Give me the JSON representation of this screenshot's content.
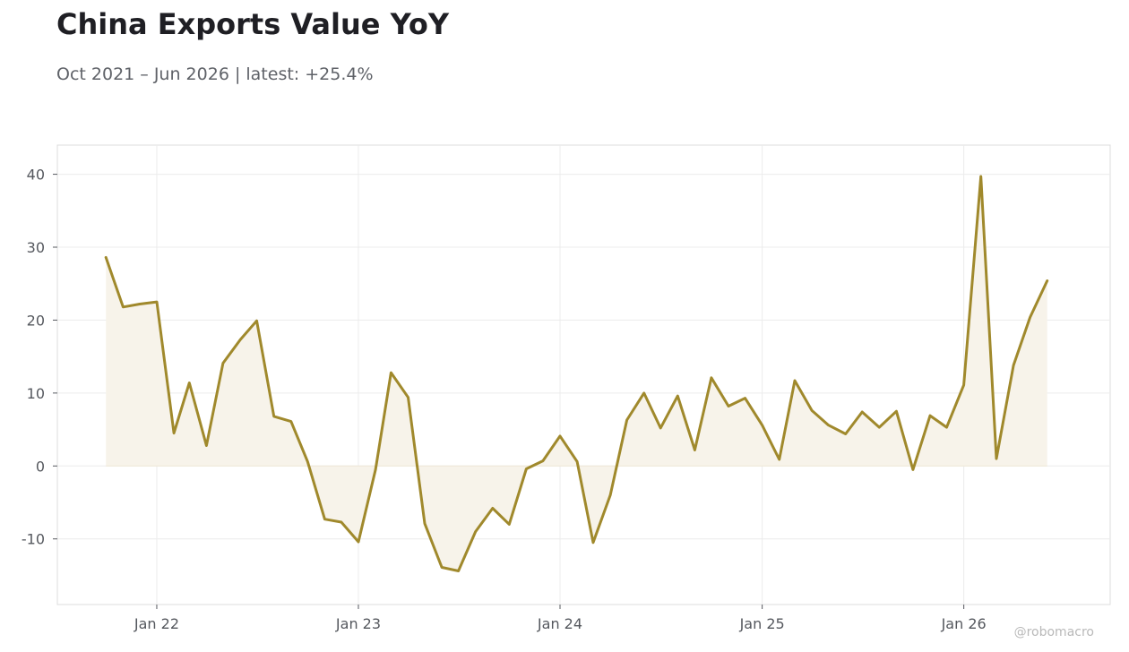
{
  "header": {
    "title": "China Exports Value YoY",
    "subtitle": "Oct 2021 – Jun 2026 | latest: +25.4%"
  },
  "watermark": "@robomacro",
  "colors": {
    "line": "#a0892c",
    "fill": "#f7f3ea",
    "grid": "#ececec",
    "frame": "#dcdcdc"
  },
  "chart_data": {
    "type": "area",
    "title": "China Exports Value YoY",
    "subtitle": "Oct 2021 – Jun 2026 | latest: +25.4%",
    "xlabel": "",
    "ylabel": "",
    "ylim": [
      -19,
      44
    ],
    "xlim": [
      "2021-07-05",
      "2026-09-23"
    ],
    "grid": true,
    "legend": "none",
    "yticks": [
      -10,
      0,
      10,
      20,
      30,
      40
    ],
    "ytick_labels": [
      "-10",
      "0",
      "10",
      "20",
      "30",
      "40"
    ],
    "xticks": [
      "2022-01-01",
      "2023-01-01",
      "2024-01-01",
      "2025-01-01",
      "2026-01-01"
    ],
    "xtick_labels": [
      "Jan 22",
      "Jan 23",
      "Jan 24",
      "Jan 25",
      "Jan 26"
    ],
    "series": [
      {
        "x": [
          "2021-10-01",
          "2021-11-01",
          "2021-12-01",
          "2022-01-01",
          "2022-02-01",
          "2022-03-01",
          "2022-04-01",
          "2022-05-01",
          "2022-06-01",
          "2022-07-01",
          "2022-08-01",
          "2022-09-01",
          "2022-10-01",
          "2022-11-01",
          "2022-12-01",
          "2023-01-01",
          "2023-02-01",
          "2023-03-01",
          "2023-04-01",
          "2023-05-01",
          "2023-06-01",
          "2023-07-01",
          "2023-08-01",
          "2023-09-01",
          "2023-10-01",
          "2023-11-01",
          "2023-12-01",
          "2024-01-01",
          "2024-02-01",
          "2024-03-01",
          "2024-04-01",
          "2024-05-01",
          "2024-06-01",
          "2024-07-01",
          "2024-08-01",
          "2024-09-01",
          "2024-10-01",
          "2024-11-01",
          "2024-12-01",
          "2025-01-01",
          "2025-02-01",
          "2025-03-01",
          "2025-04-01",
          "2025-05-01",
          "2025-06-01",
          "2025-07-01",
          "2025-08-01",
          "2025-09-01",
          "2025-10-01",
          "2025-11-01",
          "2025-12-01",
          "2026-01-01",
          "2026-02-01",
          "2026-03-01",
          "2026-04-01",
          "2026-05-01",
          "2026-06-01"
        ],
        "values": [
          28.6,
          21.8,
          22.2,
          22.5,
          4.5,
          11.4,
          2.8,
          14.1,
          17.3,
          19.9,
          6.8,
          6.1,
          0.6,
          -7.3,
          -7.7,
          -10.4,
          -0.5,
          12.8,
          9.4,
          -7.9,
          -13.9,
          -14.4,
          -9.0,
          -5.8,
          -8.0,
          -0.4,
          0.7,
          4.1,
          0.6,
          -10.5,
          -4.0,
          6.3,
          10.0,
          5.2,
          9.6,
          2.2,
          12.1,
          8.2,
          9.3,
          5.6,
          0.9,
          11.7,
          7.6,
          5.6,
          4.4,
          7.4,
          5.3,
          7.5,
          -0.5,
          6.9,
          5.3,
          11.1,
          39.7,
          1.0,
          13.8,
          20.4,
          25.4
        ]
      }
    ]
  }
}
